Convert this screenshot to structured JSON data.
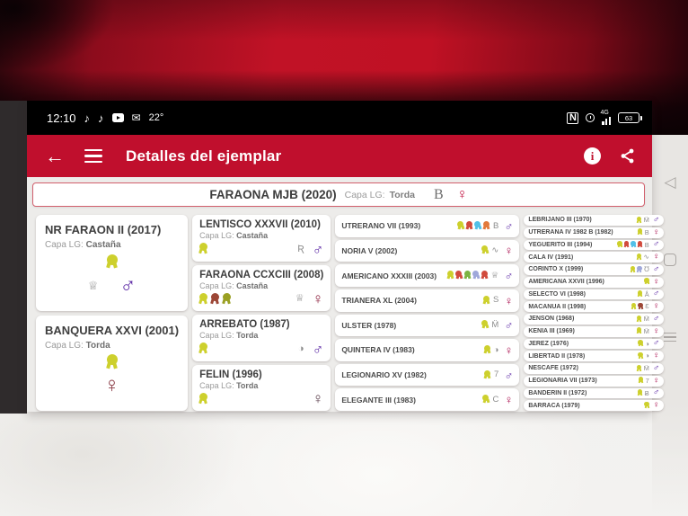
{
  "colors": {
    "appbar_red": "#c00f2d",
    "male": "#5e2ba6",
    "female": "#ad1654",
    "subject_female": "#c00f3e",
    "medal_palette": {
      "yellow": "#cdd02d",
      "red": "#d14a3c",
      "blue": "#52c0e8",
      "orange": "#e2793b",
      "green": "#7cb342",
      "lavender": "#9fa8da",
      "maroon": "#9c4636",
      "olive": "#9aa023"
    }
  },
  "status_bar": {
    "time": "12:10",
    "temp": "22°",
    "battery": "63",
    "signal_label": "4G",
    "nfc_label": "N",
    "left_icons": [
      "music-note-icon",
      "music-note-icon",
      "youtube-icon",
      "mail-icon"
    ],
    "right_icons": [
      "nfc-icon",
      "alarm-clock-icon",
      "signal-bars-icon",
      "battery-icon"
    ]
  },
  "app_bar": {
    "title": "Detalles del ejemplar",
    "left_icons": [
      "back-arrow-icon",
      "menu-icon"
    ],
    "right_icons": [
      "info-icon",
      "share-icon"
    ]
  },
  "nav_bar": {
    "buttons": [
      "back-triangle-icon",
      "home-square-icon",
      "recents-lines-icon"
    ]
  },
  "labels": {
    "capa": "Capa LG:"
  },
  "glyphs": {
    "brand": {
      "crown-r": "♕",
      "crown": "♕",
      "script-r": "Ʀ",
      "circle": "◑",
      "m-dots": "M̈",
      "seven": "7",
      "letter-c": "C",
      "letter-b": "B",
      "letter-s": "S",
      "wave": "∿",
      "u-horns": "℧",
      "a-ring": "Å",
      "epsilon": "Ɛ",
      "b-stroke": "Ƀ",
      "subject-b": "B"
    },
    "gender": {
      "male": "♂",
      "female": "♀"
    }
  },
  "subject": {
    "name": "FARAONA MJB (2020)",
    "capa_label": "Capa LG:",
    "capa": "Torda",
    "brand": "subject-b",
    "gender": "female"
  },
  "pedigree": {
    "columns": [
      {
        "cells": [
          {
            "name": "NR FARAON II (2017)",
            "capa": "Castaña",
            "medals": [
              "yellow"
            ],
            "brand": "crown-r",
            "gender": "male"
          },
          {
            "name": "BANQUERA XXVI (2001)",
            "capa": "Torda",
            "medals": [
              "yellow"
            ],
            "brand": "",
            "gender": "female",
            "gender_color": "#8a3b46"
          }
        ]
      },
      {
        "cells": [
          {
            "name": "LENTISCO XXXVII (2010)",
            "capa": "Castaña",
            "medals": [
              "yellow"
            ],
            "brand": "script-r",
            "gender": "male"
          },
          {
            "name": "FARAONA CCXCIII (2008)",
            "capa": "Castaña",
            "medals": [
              "yellow",
              "maroon",
              "olive"
            ],
            "brand": "crown",
            "gender": "female",
            "gender_color": "#8e2340"
          },
          {
            "name": "ARREBATO (1987)",
            "capa": "Torda",
            "medals": [
              "yellow"
            ],
            "brand": "circle",
            "gender": "male"
          },
          {
            "name": "FELIN (1996)",
            "capa": "Torda",
            "medals": [
              "yellow"
            ],
            "brand": "",
            "gender": "female",
            "gender_color": "#5f4350"
          }
        ]
      },
      {
        "cells": [
          {
            "name": "UTRERANO VII (1993)",
            "medals": [
              "yellow",
              "red",
              "blue",
              "orange"
            ],
            "brand": "letter-b",
            "gender": "male"
          },
          {
            "name": "NORIA V (2002)",
            "medals": [
              "yellow"
            ],
            "brand": "wave",
            "gender": "female"
          },
          {
            "name": "AMERICANO XXXIII (2003)",
            "medals": [
              "yellow",
              "red",
              "green",
              "lavender",
              "red"
            ],
            "brand": "crown",
            "gender": "male"
          },
          {
            "name": "TRIANERA XL (2004)",
            "medals": [
              "yellow"
            ],
            "brand": "letter-s",
            "gender": "female"
          },
          {
            "name": "ULSTER (1978)",
            "medals": [
              "yellow"
            ],
            "brand": "m-dots",
            "gender": "male"
          },
          {
            "name": "QUINTERA IV (1983)",
            "medals": [
              "yellow"
            ],
            "brand": "circle",
            "gender": "female"
          },
          {
            "name": "LEGIONARIO XV (1982)",
            "medals": [
              "yellow"
            ],
            "brand": "seven",
            "gender": "male"
          },
          {
            "name": "ELEGANTE III (1983)",
            "medals": [
              "yellow"
            ],
            "brand": "letter-c",
            "gender": "female"
          }
        ]
      },
      {
        "cells": [
          {
            "name": "LEBRIJANO III (1970)",
            "medals": [
              "yellow"
            ],
            "brand": "m-dots",
            "gender": "male"
          },
          {
            "name": "UTRERANA IV 1982 B (1982)",
            "medals": [
              "yellow"
            ],
            "brand": "letter-b",
            "gender": "female"
          },
          {
            "name": "YEGÜERITO III (1994)",
            "medals": [
              "yellow",
              "red",
              "blue",
              "red"
            ],
            "brand": "letter-b",
            "gender": "male"
          },
          {
            "name": "CALA IV (1991)",
            "medals": [
              "yellow"
            ],
            "brand": "wave",
            "gender": "female"
          },
          {
            "name": "CORINTO X (1999)",
            "medals": [
              "yellow",
              "lavender"
            ],
            "brand": "u-horns",
            "gender": "male"
          },
          {
            "name": "AMERICANA XXVII (1996)",
            "medals": [
              "yellow"
            ],
            "brand": "",
            "gender": "female"
          },
          {
            "name": "SELECTO VI (1998)",
            "medals": [
              "yellow"
            ],
            "brand": "a-ring",
            "gender": "male"
          },
          {
            "name": "MACANUA II (1998)",
            "medals": [
              "yellow",
              "maroon"
            ],
            "brand": "epsilon",
            "gender": "female"
          },
          {
            "name": "JENSON (1968)",
            "medals": [
              "yellow"
            ],
            "brand": "m-dots",
            "gender": "male"
          },
          {
            "name": "KENIA III (1969)",
            "medals": [
              "yellow"
            ],
            "brand": "m-dots",
            "gender": "female"
          },
          {
            "name": "JEREZ (1976)",
            "medals": [
              "yellow"
            ],
            "brand": "circle",
            "gender": "male"
          },
          {
            "name": "LIBERTAD II (1978)",
            "medals": [
              "yellow"
            ],
            "brand": "circle",
            "gender": "female"
          },
          {
            "name": "NESCAFE (1972)",
            "medals": [
              "yellow"
            ],
            "brand": "m-dots",
            "gender": "male"
          },
          {
            "name": "LEGIONARIA VII (1973)",
            "medals": [
              "yellow"
            ],
            "brand": "seven",
            "gender": "female"
          },
          {
            "name": "BANDERIN II (1972)",
            "medals": [
              "yellow"
            ],
            "brand": "b-stroke",
            "gender": "male"
          },
          {
            "name": "BARRACA (1979)",
            "medals": [
              "yellow"
            ],
            "brand": "",
            "gender": "female"
          }
        ]
      }
    ]
  }
}
